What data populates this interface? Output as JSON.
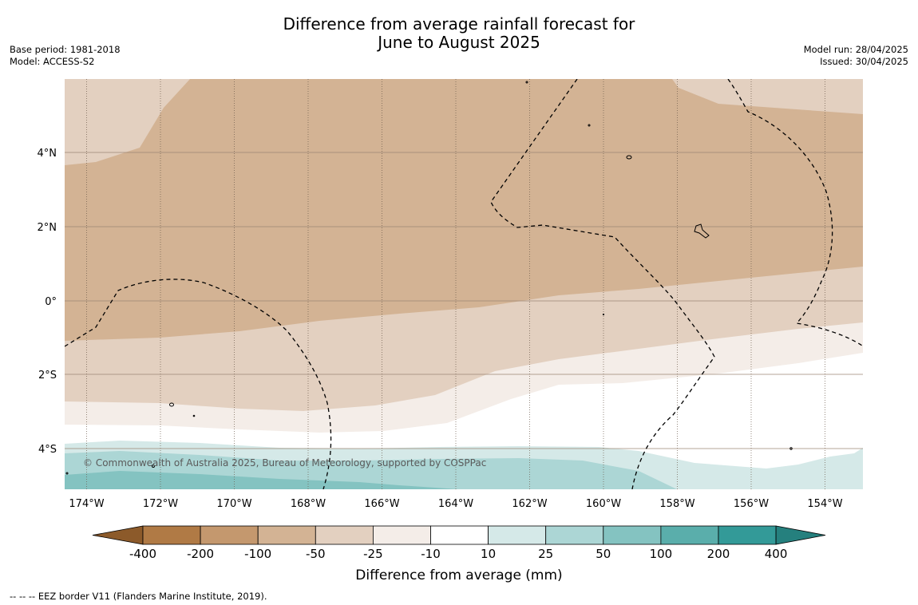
{
  "title_line1": "Difference from average rainfall forecast for",
  "title_line2": "June to August 2025",
  "base_period": "Base period: 1981-2018",
  "model": "Model: ACCESS-S2",
  "model_run": "Model run: 28/04/2025",
  "issued": "Issued: 30/04/2025",
  "copyright": "© Commonwealth of Australia 2025, Bureau of Meteorology, supported by COSPPac",
  "lon_labels": [
    "174°W",
    "172°W",
    "170°W",
    "168°W",
    "166°W",
    "164°W",
    "162°W",
    "160°W",
    "158°W",
    "156°W",
    "154°W"
  ],
  "lat_labels": [
    "4°N",
    "2°N",
    "0°",
    "2°S",
    "4°S"
  ],
  "colorbar": {
    "label": "Difference from average (mm)",
    "ticks": [
      "-400",
      "-200",
      "-100",
      "-50",
      "-25",
      "-10",
      "10",
      "25",
      "50",
      "100",
      "200",
      "400"
    ],
    "colors": [
      "#8c5a2a",
      "#b07a45",
      "#c4986e",
      "#d3b394",
      "#e3d0c0",
      "#f4ede8",
      "#ffffff",
      "#d5e9e8",
      "#acd6d5",
      "#84c3c1",
      "#5aaeab",
      "#339a98",
      "#25807e"
    ]
  },
  "legend_note": "--  --  -- EEZ border V11 (Flanders Marine Institute, 2019)."
}
